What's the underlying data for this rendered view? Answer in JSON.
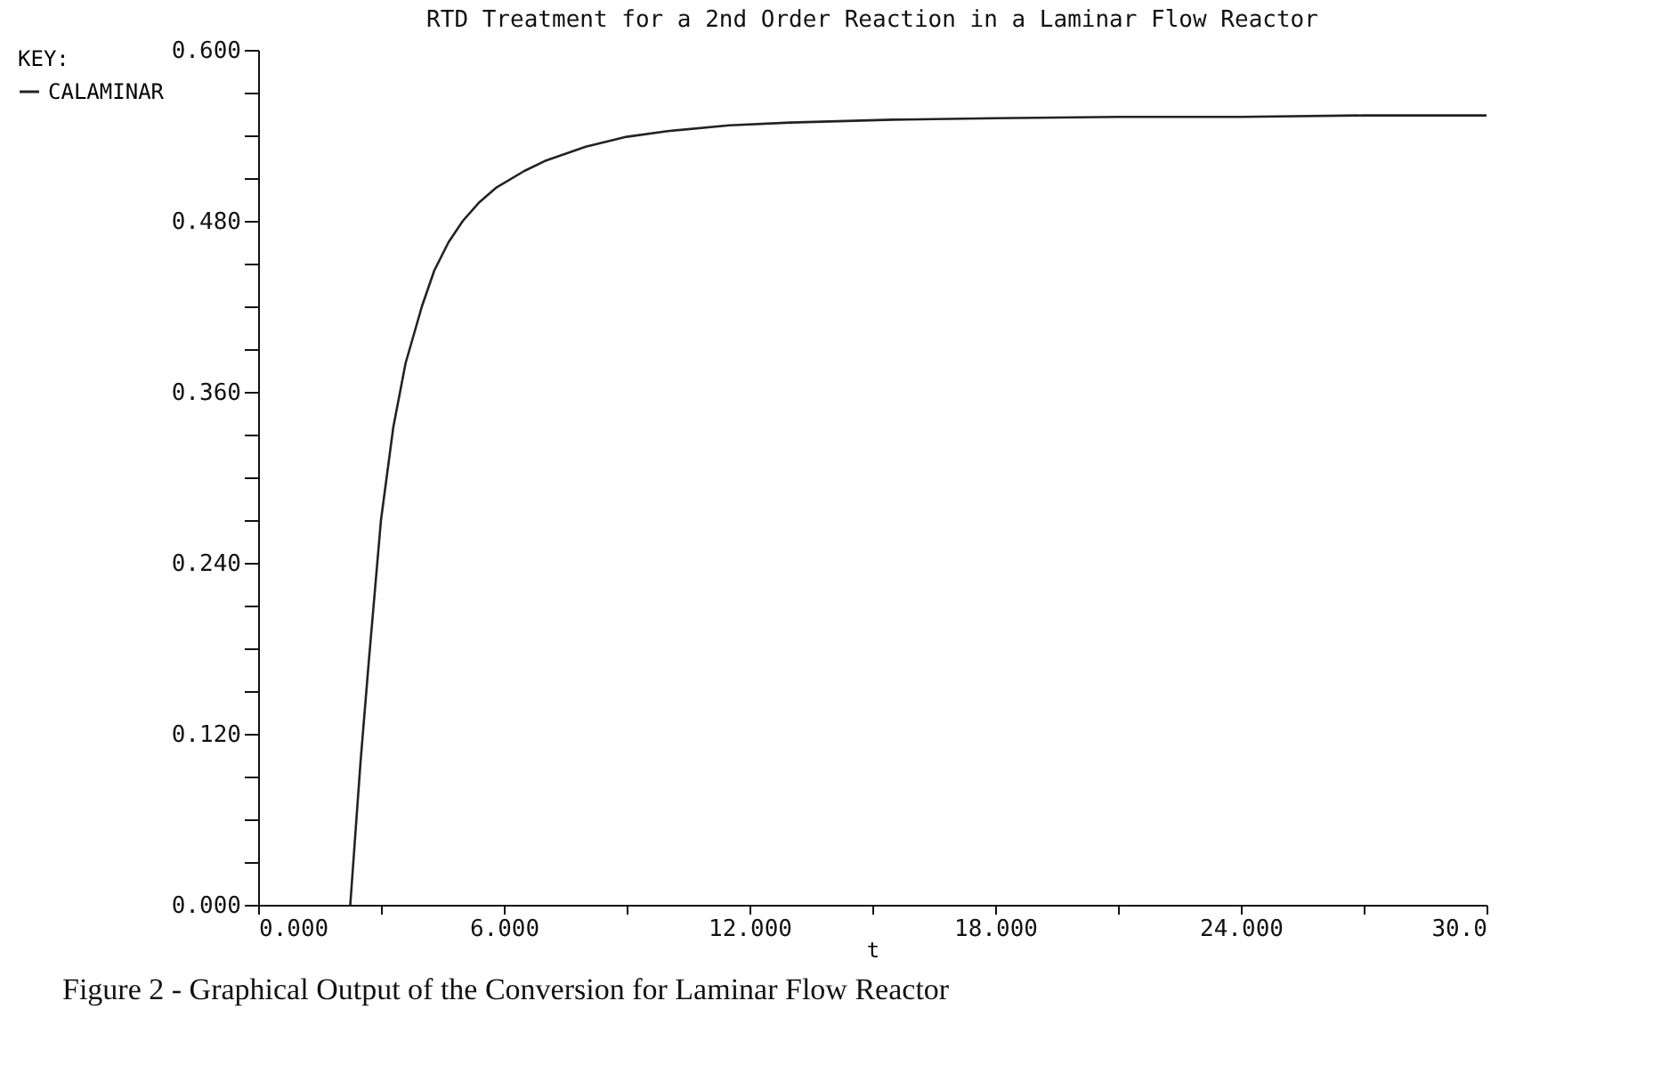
{
  "chart_data": {
    "type": "line",
    "title": "RTD Treatment for a 2nd Order Reaction in a Laminar Flow Reactor",
    "xlabel": "t",
    "legend_title": "KEY:",
    "legend": "left",
    "grid": false,
    "marker": "none",
    "line_style": "solid",
    "annotations": [
      "Figure 2 - Graphical Output of the Conversion for Laminar Flow Reactor"
    ],
    "xlim": [
      0,
      30
    ],
    "ylim": [
      0,
      0.6
    ],
    "xticks": [
      {
        "value": 0,
        "label": "0.000"
      },
      {
        "value": 3,
        "label": null
      },
      {
        "value": 6,
        "label": "6.000"
      },
      {
        "value": 9,
        "label": null
      },
      {
        "value": 12,
        "label": "12.000"
      },
      {
        "value": 15,
        "label": null
      },
      {
        "value": 18,
        "label": "18.000"
      },
      {
        "value": 21,
        "label": null
      },
      {
        "value": 24,
        "label": "24.000"
      },
      {
        "value": 27,
        "label": null
      },
      {
        "value": 30,
        "label": "30.0"
      }
    ],
    "yticks": [
      {
        "value": 0,
        "label": "0.000"
      },
      {
        "value": 0.03,
        "label": null
      },
      {
        "value": 0.06,
        "label": null
      },
      {
        "value": 0.09,
        "label": null
      },
      {
        "value": 0.12,
        "label": "0.120"
      },
      {
        "value": 0.15,
        "label": null
      },
      {
        "value": 0.18,
        "label": null
      },
      {
        "value": 0.21,
        "label": null
      },
      {
        "value": 0.24,
        "label": "0.240"
      },
      {
        "value": 0.27,
        "label": null
      },
      {
        "value": 0.3,
        "label": null
      },
      {
        "value": 0.33,
        "label": null
      },
      {
        "value": 0.36,
        "label": "0.360"
      },
      {
        "value": 0.39,
        "label": null
      },
      {
        "value": 0.42,
        "label": null
      },
      {
        "value": 0.45,
        "label": null
      },
      {
        "value": 0.48,
        "label": "0.480"
      },
      {
        "value": 0.51,
        "label": null
      },
      {
        "value": 0.54,
        "label": null
      },
      {
        "value": 0.57,
        "label": null
      },
      {
        "value": 0.6,
        "label": "0.600"
      }
    ],
    "series": [
      {
        "name": "CALAMINAR",
        "color": "#222222",
        "x": [
          2.25,
          2.5,
          2.7,
          2.85,
          3.0,
          3.3,
          3.6,
          4.0,
          4.3,
          4.65,
          5.0,
          5.4,
          5.8,
          6.5,
          7.0,
          8.0,
          9.0,
          10.0,
          11.5,
          13.0,
          15.5,
          18.0,
          21.0,
          24.0,
          27.0,
          30.0
        ],
        "values": [
          0.0,
          0.1,
          0.17,
          0.22,
          0.27,
          0.335,
          0.38,
          0.42,
          0.445,
          0.465,
          0.48,
          0.493,
          0.503,
          0.515,
          0.522,
          0.532,
          0.539,
          0.543,
          0.547,
          0.549,
          0.551,
          0.552,
          0.553,
          0.553,
          0.554,
          0.554
        ]
      }
    ]
  }
}
